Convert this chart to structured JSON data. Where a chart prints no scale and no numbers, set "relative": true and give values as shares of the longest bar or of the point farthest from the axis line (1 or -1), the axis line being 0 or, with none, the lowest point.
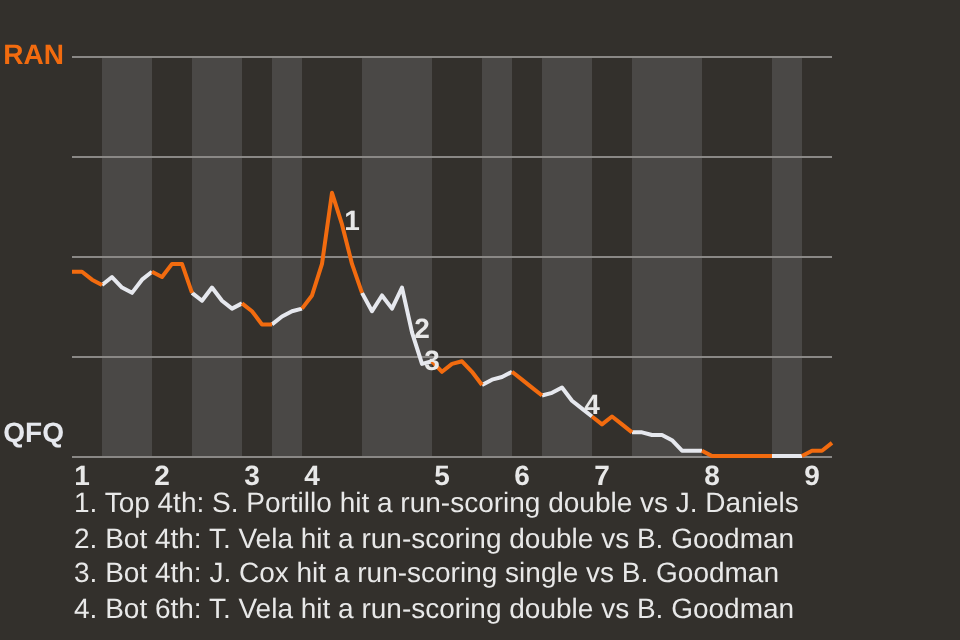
{
  "chart_data": {
    "type": "line",
    "relative": true,
    "categories": [
      null,
      "1",
      null,
      null,
      null,
      null,
      null,
      null,
      null,
      "2",
      null,
      null,
      null,
      null,
      null,
      null,
      null,
      null,
      "3",
      null,
      null,
      null,
      null,
      null,
      "4",
      null,
      null,
      null,
      null,
      null,
      null,
      null,
      null,
      null,
      null,
      null,
      null,
      "5",
      null,
      null,
      null,
      null,
      null,
      null,
      null,
      "6",
      null,
      null,
      null,
      null,
      null,
      null,
      null,
      "7",
      null,
      null,
      null,
      null,
      null,
      null,
      null,
      null,
      null,
      null,
      "8",
      null,
      null,
      null,
      null,
      null,
      null,
      null,
      null,
      null,
      "9",
      null,
      null
    ],
    "series": [
      {
        "name": "RAN",
        "color": "#f26b0f",
        "values": [
          0.7,
          0.7,
          0.67,
          0.65,
          null,
          null,
          null,
          null,
          0.7,
          0.68,
          0.73,
          0.73,
          0.62,
          null,
          null,
          null,
          null,
          0.58,
          0.55,
          0.5,
          0.5,
          null,
          null,
          0.56,
          0.61,
          0.73,
          1,
          0.88,
          0.73,
          0.62,
          null,
          null,
          null,
          null,
          null,
          null,
          0.36,
          0.32,
          0.35,
          0.36,
          0.32,
          0.27,
          null,
          null,
          0.32,
          0.29,
          0.26,
          0.23,
          null,
          null,
          null,
          null,
          0.15,
          0.12,
          0.15,
          0.12,
          0.09,
          null,
          null,
          null,
          null,
          null,
          null,
          0.02,
          0,
          0,
          0,
          0,
          0,
          0,
          0,
          null,
          null,
          0,
          0.02,
          0.02,
          0.05
        ]
      },
      {
        "name": "QFQ",
        "color": "#e6e8ee",
        "values": [
          null,
          null,
          null,
          0.65,
          0.68,
          0.64,
          0.62,
          0.67,
          0.7,
          null,
          null,
          null,
          0.62,
          0.59,
          0.64,
          0.59,
          0.56,
          0.58,
          null,
          null,
          0.5,
          0.53,
          0.55,
          0.56,
          null,
          null,
          null,
          null,
          null,
          0.62,
          0.55,
          0.61,
          0.56,
          0.64,
          0.47,
          0.35,
          0.36,
          null,
          null,
          null,
          null,
          0.27,
          0.29,
          0.3,
          0.32,
          null,
          null,
          0.23,
          0.24,
          0.26,
          0.21,
          0.18,
          0.15,
          null,
          null,
          null,
          0.09,
          0.09,
          0.08,
          0.08,
          0.06,
          0.02,
          0.02,
          0.02,
          null,
          null,
          null,
          null,
          null,
          null,
          0,
          0,
          0,
          0,
          null,
          null,
          null
        ]
      }
    ],
    "legend": "left",
    "ref_lines": [
      {
        "axis": "y",
        "value": 0,
        "color": "#8a8886"
      },
      {
        "axis": "y",
        "value": 0.38,
        "color": "#8a8886"
      },
      {
        "axis": "y",
        "value": 0.76,
        "color": "#8a8886"
      },
      {
        "axis": "y",
        "value": 1.14,
        "color": "#8a8886"
      },
      {
        "axis": "y",
        "value": 1.52,
        "color": "#8a8886"
      }
    ],
    "annotations": [
      {
        "text": "1",
        "y": 0.88
      },
      {
        "text": "2",
        "y": 0.47
      },
      {
        "text": "3",
        "y": 0.35
      },
      {
        "text": "4",
        "y": 0.18
      },
      "1. Top 4th: S. Portillo hit a run-scoring double vs J. Daniels",
      "2. Bot 4th: T. Vela hit a run-scoring double vs B. Goodman",
      "3. Bot 4th: J. Cox hit a run-scoring single vs B. Goodman",
      "4. Bot 6th: T. Vela hit a run-scoring double vs B. Goodman"
    ]
  }
}
